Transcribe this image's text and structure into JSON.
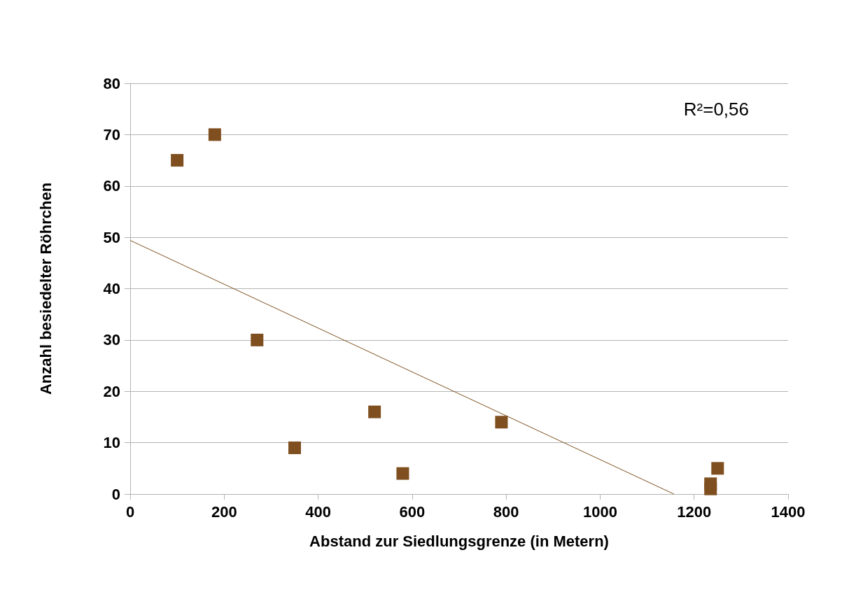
{
  "chart_data": {
    "type": "scatter",
    "xlabel": "Abstand zur Siedlungsgrenze (in Metern)",
    "ylabel": "Anzahl besiedelter Röhrchen",
    "annotations": [
      "R²=0,56"
    ],
    "xlim": [
      0,
      1400
    ],
    "xticks": [
      0,
      200,
      400,
      600,
      800,
      1000,
      1200,
      1400
    ],
    "ylim": [
      0,
      80
    ],
    "yticks": [
      0,
      10,
      20,
      30,
      40,
      50,
      60,
      70,
      80
    ],
    "grid": "y",
    "series": [
      {
        "color": "#7f4f1f",
        "marker": "square",
        "x": [
          100,
          180,
          270,
          350,
          520,
          580,
          790,
          1235,
          1235,
          1250
        ],
        "values": [
          65,
          70,
          30,
          9,
          16,
          4,
          14,
          1,
          2,
          5
        ]
      },
      {
        "type": "line",
        "color": "#7f4f1f",
        "marker": "none",
        "line_style": "solid",
        "x": [
          0,
          1157
        ],
        "values": [
          49.4,
          0
        ]
      }
    ]
  }
}
